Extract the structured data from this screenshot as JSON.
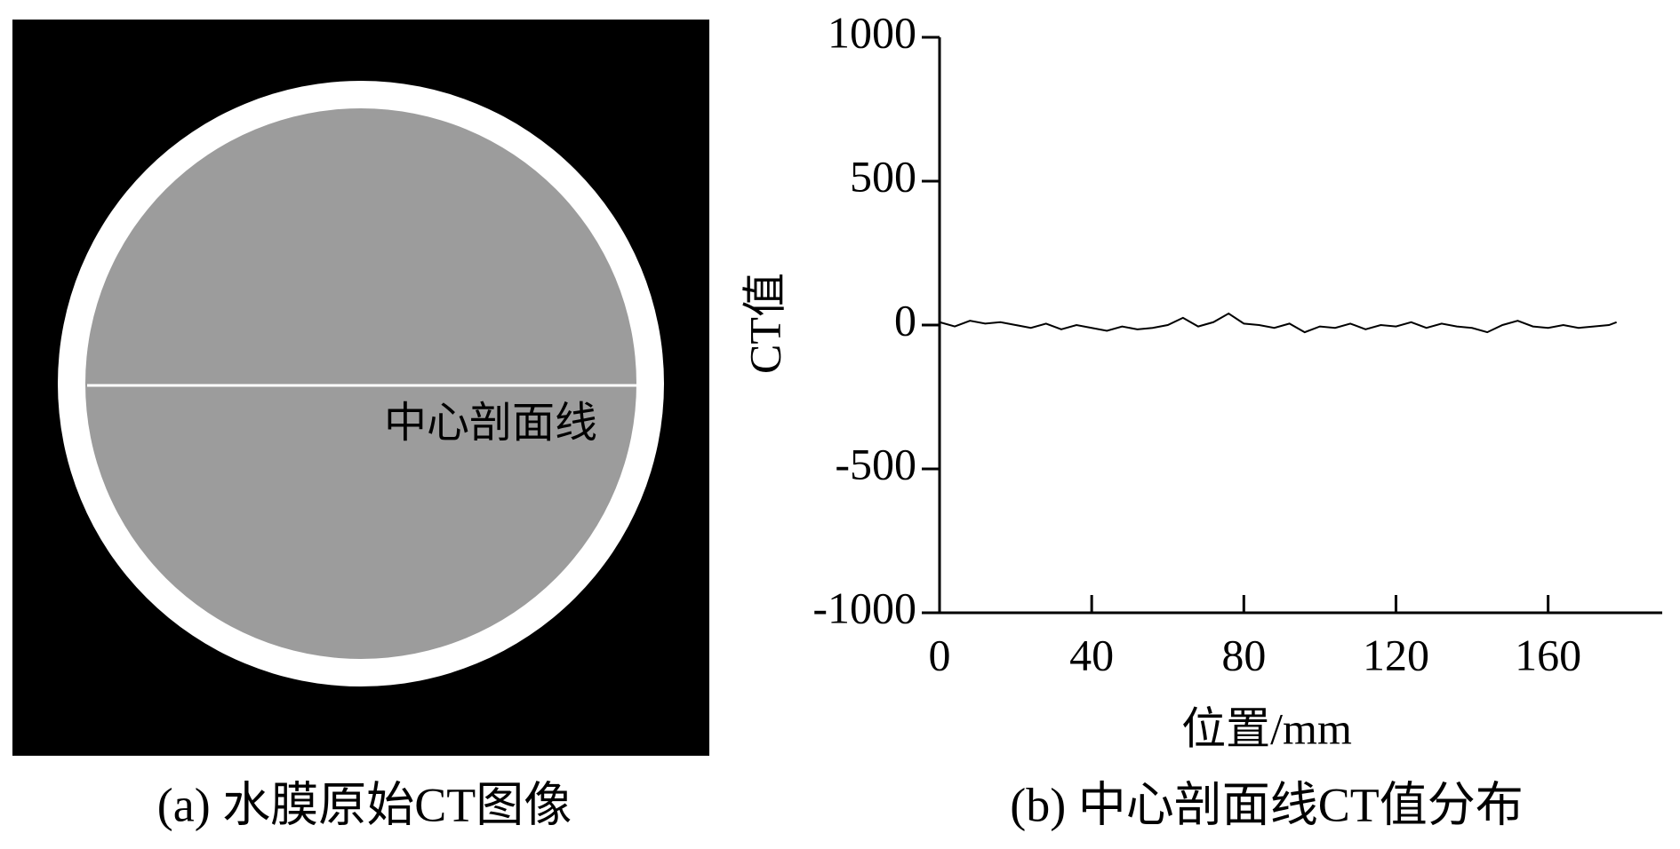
{
  "image_panel": {
    "annotation": "中心剖面线",
    "caption": "(a) 水膜原始CT图像"
  },
  "chart_data": {
    "type": "line",
    "caption": "(b) 中心剖面线CT值分布",
    "x_label": "位置/mm",
    "y_label": "CT值",
    "x": [
      0,
      4,
      8,
      12,
      16,
      20,
      24,
      28,
      32,
      36,
      40,
      44,
      48,
      52,
      56,
      60,
      64,
      68,
      72,
      76,
      80,
      84,
      88,
      92,
      96,
      100,
      104,
      108,
      112,
      116,
      120,
      124,
      128,
      132,
      136,
      140,
      144,
      148,
      152,
      156,
      160,
      164,
      168,
      172,
      176,
      178
    ],
    "series": [
      {
        "color": "#000000",
        "values": [
          10,
          -5,
          15,
          5,
          10,
          0,
          -10,
          5,
          -15,
          0,
          -10,
          -20,
          -5,
          -15,
          -10,
          0,
          25,
          -5,
          10,
          40,
          5,
          0,
          -10,
          5,
          -25,
          -5,
          -10,
          5,
          -15,
          0,
          -5,
          10,
          -10,
          5,
          -5,
          -10,
          -25,
          0,
          15,
          -5,
          -10,
          0,
          -10,
          -5,
          0,
          10
        ]
      }
    ],
    "xlim": [
      0,
      190
    ],
    "ylim": [
      -1000,
      1000
    ],
    "xticks": [
      0,
      40,
      80,
      120,
      160
    ],
    "yticks": [
      -1000,
      -500,
      0,
      500,
      1000
    ]
  }
}
